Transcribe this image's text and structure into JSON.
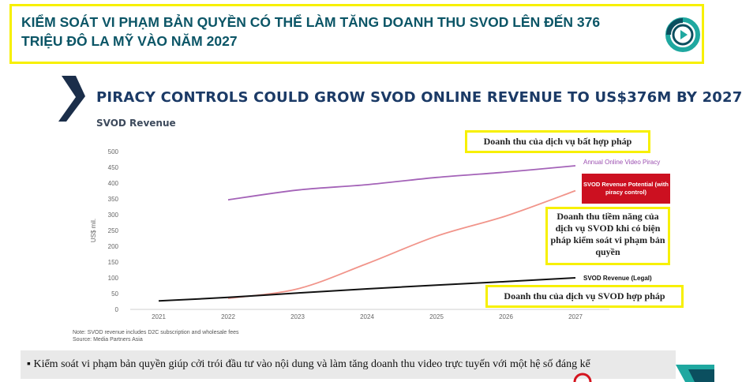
{
  "header": {
    "title": "KIỂM SOÁT VI PHẠM BẢN QUYỀN CÓ THỂ LÀM TĂNG DOANH THU SVOD LÊN ĐẾN 376 TRIỆU ĐÔ LA MỸ VÀO NĂM 2027",
    "logo_icon": "play-logo-icon"
  },
  "slide": {
    "title": "PIRACY CONTROLS COULD GROW SVOD ONLINE REVENUE TO US$376M BY 2027",
    "subtitle": "SVOD Revenue",
    "note_line1": "Note: SVOD revenue includes D2C subscription and wholesale fees",
    "note_line2": "Source: Media Partners Asia"
  },
  "callouts": {
    "illegal": "Doanh thu của dịch vụ bất hợp pháp",
    "potential": "Doanh thu tiềm năng của dịch vụ SVOD khi có biện pháp kiểm soát vi phạm bản quyền",
    "legal": "Doanh thu của dịch vụ SVOD hợp pháp"
  },
  "bottom": {
    "bullet": "▪ Kiểm soát vi phạm bản quyền giúp cởi trói đầu tư vào nội dung và làm tăng doanh thu video trực tuyến với một hệ số đáng kể"
  },
  "chart_data": {
    "type": "line",
    "x": [
      "2021",
      "2022",
      "2023",
      "2024",
      "2025",
      "2026",
      "2027"
    ],
    "ylabel": "US$ mil.",
    "ylim": [
      0,
      500
    ],
    "yticks": [
      0,
      50,
      100,
      150,
      200,
      250,
      300,
      350,
      400,
      450,
      500
    ],
    "grid": false,
    "series": [
      {
        "name": "Annual Online Video Piracy",
        "color": "#a463b8",
        "values": [
          null,
          347,
          378,
          395,
          418,
          435,
          455
        ]
      },
      {
        "name": "SVOD Revenue Potential (with piracy control)",
        "color": "#f1948a",
        "values": [
          null,
          35,
          65,
          145,
          232,
          296,
          376
        ]
      },
      {
        "name": "SVOD Revenue (Legal)",
        "color": "#111111",
        "values": [
          27,
          38,
          52,
          65,
          77,
          88,
          100
        ]
      }
    ]
  }
}
